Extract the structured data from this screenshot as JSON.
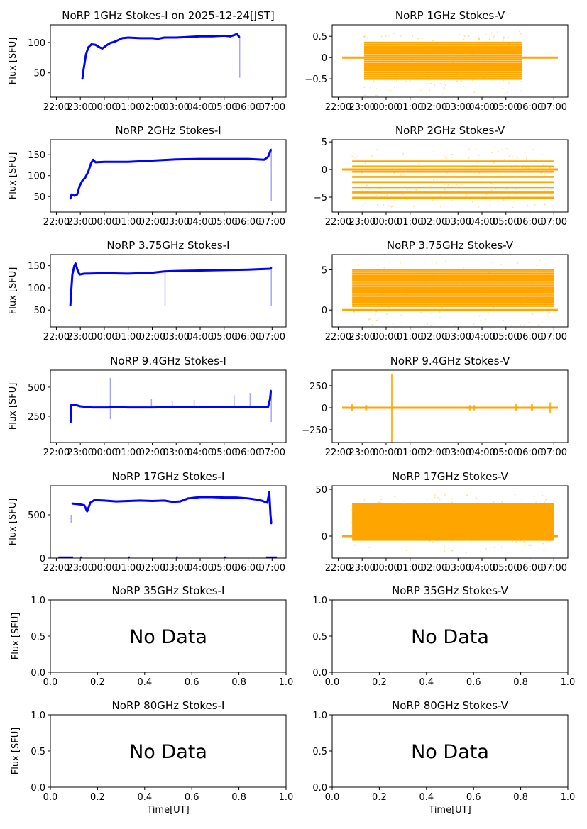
{
  "chart_data": [
    {
      "id": "1ghz-i",
      "type": "line",
      "title": "NoRP 1GHz Stokes-I on 2025-12-24[JST]",
      "ylabel": "Flux [SFU]",
      "xlabel": "",
      "color": "#0000ff",
      "xlim": [
        "21:45",
        "07:35"
      ],
      "xticks": [
        "22:00",
        "23:00",
        "00:00",
        "01:00",
        "02:00",
        "03:00",
        "04:00",
        "05:00",
        "06:00",
        "07:00"
      ],
      "ylim": [
        10,
        129
      ],
      "yticks": [
        50,
        100
      ],
      "points": [
        [
          "23:05",
          40
        ],
        [
          "23:08",
          55
        ],
        [
          "23:14",
          80
        ],
        [
          "23:20",
          92
        ],
        [
          "23:28",
          97
        ],
        [
          "23:38",
          96
        ],
        [
          "23:48",
          92
        ],
        [
          "23:55",
          90
        ],
        [
          "00:05",
          95
        ],
        [
          "00:15",
          99
        ],
        [
          "00:25",
          101
        ],
        [
          "00:35",
          104
        ],
        [
          "00:45",
          107
        ],
        [
          "01:00",
          108
        ],
        [
          "01:30",
          107
        ],
        [
          "02:00",
          107
        ],
        [
          "02:15",
          106
        ],
        [
          "02:30",
          108
        ],
        [
          "03:00",
          108
        ],
        [
          "03:30",
          109
        ],
        [
          "04:00",
          110
        ],
        [
          "04:30",
          110
        ],
        [
          "05:00",
          111
        ],
        [
          "05:15",
          110
        ],
        [
          "05:25",
          112
        ],
        [
          "05:32",
          114
        ],
        [
          "05:38",
          109
        ]
      ],
      "spikes": [
        [
          "05:39",
          42,
          109
        ]
      ]
    },
    {
      "id": "1ghz-v",
      "type": "scatter",
      "title": "NoRP 1GHz Stokes-V",
      "ylabel": "",
      "xlabel": "",
      "color": "#ffa500",
      "xlim": [
        "21:45",
        "07:35"
      ],
      "xticks": [
        "22:00",
        "23:00",
        "00:00",
        "01:00",
        "02:00",
        "03:00",
        "04:00",
        "05:00",
        "06:00",
        "07:00"
      ],
      "ylim": [
        -0.93,
        0.77
      ],
      "yticks": [
        -0.5,
        0.0,
        0.5
      ],
      "baseline": [
        "22:10",
        "07:10",
        0
      ],
      "band": {
        "from": "23:05",
        "to": "05:40",
        "levels_min": -0.5,
        "levels_max": 0.35,
        "step": 0.05
      },
      "sparse": {
        "min": -0.9,
        "max": 0.62
      }
    },
    {
      "id": "2ghz-i",
      "type": "line",
      "title": "NoRP 2GHz Stokes-I",
      "ylabel": "Flux [SFU]",
      "xlabel": "",
      "color": "#0000ff",
      "xlim": [
        "21:45",
        "07:35"
      ],
      "xticks": [
        "22:00",
        "23:00",
        "00:00",
        "01:00",
        "02:00",
        "03:00",
        "04:00",
        "05:00",
        "06:00",
        "07:00"
      ],
      "ylim": [
        13,
        186
      ],
      "yticks": [
        50,
        100,
        150
      ],
      "points": [
        [
          "22:35",
          45
        ],
        [
          "22:38",
          55
        ],
        [
          "22:45",
          52
        ],
        [
          "22:52",
          55
        ],
        [
          "22:58",
          75
        ],
        [
          "23:05",
          88
        ],
        [
          "23:12",
          95
        ],
        [
          "23:20",
          110
        ],
        [
          "23:27",
          130
        ],
        [
          "23:32",
          138
        ],
        [
          "23:38",
          132
        ],
        [
          "00:00",
          133
        ],
        [
          "01:00",
          133
        ],
        [
          "02:00",
          136
        ],
        [
          "03:00",
          139
        ],
        [
          "04:00",
          140
        ],
        [
          "05:00",
          140
        ],
        [
          "06:00",
          140
        ],
        [
          "06:40",
          138
        ],
        [
          "06:50",
          145
        ],
        [
          "06:57",
          162
        ]
      ],
      "spikes": [
        [
          "06:58",
          40,
          165
        ]
      ]
    },
    {
      "id": "2ghz-v",
      "type": "scatter",
      "title": "NoRP 2GHz Stokes-V",
      "ylabel": "",
      "xlabel": "",
      "color": "#ffa500",
      "xlim": [
        "21:45",
        "07:35"
      ],
      "xticks": [
        "22:00",
        "23:00",
        "00:00",
        "01:00",
        "02:00",
        "03:00",
        "04:00",
        "05:00",
        "06:00",
        "07:00"
      ],
      "ylim": [
        -7.7,
        5.4
      ],
      "yticks": [
        -5,
        0,
        5
      ],
      "baseline": [
        "22:10",
        "07:10",
        0
      ],
      "band": {
        "from": "22:35",
        "to": "07:00",
        "levels_min": -5.1,
        "levels_max": 2.4,
        "step": 0.94
      },
      "sparse": {
        "min": -7,
        "max": 4.2
      }
    },
    {
      "id": "3.75ghz-i",
      "type": "line",
      "title": "NoRP 3.75GHz Stokes-I",
      "ylabel": "Flux [SFU]",
      "xlabel": "",
      "color": "#0000ff",
      "xlim": [
        "21:45",
        "07:35"
      ],
      "xticks": [
        "22:00",
        "23:00",
        "00:00",
        "01:00",
        "02:00",
        "03:00",
        "04:00",
        "05:00",
        "06:00",
        "07:00"
      ],
      "ylim": [
        12,
        175
      ],
      "yticks": [
        50,
        100,
        150
      ],
      "points": [
        [
          "22:35",
          60
        ],
        [
          "22:37",
          90
        ],
        [
          "22:40",
          130
        ],
        [
          "22:45",
          150
        ],
        [
          "22:48",
          155
        ],
        [
          "22:53",
          140
        ],
        [
          "22:58",
          130
        ],
        [
          "23:10",
          132
        ],
        [
          "00:00",
          133
        ],
        [
          "01:00",
          132
        ],
        [
          "02:00",
          134
        ],
        [
          "02:30",
          137
        ],
        [
          "03:00",
          138
        ],
        [
          "04:00",
          139
        ],
        [
          "05:00",
          140
        ],
        [
          "06:00",
          141
        ],
        [
          "06:55",
          143
        ],
        [
          "06:58",
          145
        ]
      ],
      "spikes": [
        [
          "02:32",
          60,
          137
        ],
        [
          "06:58",
          60,
          145
        ]
      ]
    },
    {
      "id": "3.75ghz-v",
      "type": "scatter",
      "title": "NoRP 3.75GHz Stokes-V",
      "ylabel": "",
      "xlabel": "",
      "color": "#ffa500",
      "xlim": [
        "21:45",
        "07:35"
      ],
      "xticks": [
        "22:00",
        "23:00",
        "00:00",
        "01:00",
        "02:00",
        "03:00",
        "04:00",
        "05:00",
        "06:00",
        "07:00"
      ],
      "ylim": [
        -2.1,
        6.9
      ],
      "yticks": [
        0,
        5
      ],
      "baseline": [
        "22:10",
        "07:10",
        0
      ],
      "band": {
        "from": "22:35",
        "to": "07:00",
        "levels_min": 0.5,
        "levels_max": 5.0,
        "step": 0.25
      },
      "sparse": {
        "min": -2,
        "max": 6.2
      }
    },
    {
      "id": "9.4ghz-i",
      "type": "line",
      "title": "NoRP 9.4GHz Stokes-I",
      "ylabel": "Flux [SFU]",
      "xlabel": "",
      "color": "#0000ff",
      "xlim": [
        "21:45",
        "07:35"
      ],
      "xticks": [
        "22:00",
        "23:00",
        "00:00",
        "01:00",
        "02:00",
        "03:00",
        "04:00",
        "05:00",
        "06:00",
        "07:00"
      ],
      "ylim": [
        24,
        646
      ],
      "yticks": [
        250,
        500
      ],
      "points": [
        [
          "22:36",
          200
        ],
        [
          "22:37",
          345
        ],
        [
          "22:45",
          350
        ],
        [
          "23:00",
          335
        ],
        [
          "23:30",
          325
        ],
        [
          "00:10",
          325
        ],
        [
          "00:20",
          330
        ],
        [
          "01:00",
          325
        ],
        [
          "02:00",
          325
        ],
        [
          "03:00",
          328
        ],
        [
          "04:00",
          330
        ],
        [
          "05:00",
          330
        ],
        [
          "06:00",
          330
        ],
        [
          "06:50",
          330
        ],
        [
          "06:55",
          400
        ],
        [
          "06:57",
          470
        ]
      ],
      "spikes": [
        [
          "00:15",
          225,
          580
        ],
        [
          "01:58",
          320,
          400
        ],
        [
          "02:50",
          320,
          380
        ],
        [
          "03:45",
          320,
          390
        ],
        [
          "05:25",
          320,
          430
        ],
        [
          "06:05",
          320,
          450
        ],
        [
          "06:58",
          200,
          470
        ]
      ]
    },
    {
      "id": "9.4ghz-v",
      "type": "scatter",
      "title": "NoRP 9.4GHz Stokes-V",
      "ylabel": "",
      "xlabel": "",
      "color": "#ffa500",
      "xlim": [
        "21:45",
        "07:35"
      ],
      "xticks": [
        "22:00",
        "23:00",
        "00:00",
        "01:00",
        "02:00",
        "03:00",
        "04:00",
        "05:00",
        "06:00",
        "07:00"
      ],
      "ylim": [
        -395,
        427
      ],
      "yticks": [
        -250,
        0,
        250
      ],
      "baseline": [
        "22:10",
        "07:10",
        0
      ],
      "bursts": [
        [
          "00:15",
          -400,
          380
        ],
        [
          "22:35",
          -40,
          40
        ],
        [
          "23:10",
          -30,
          30
        ],
        [
          "03:30",
          -30,
          30
        ],
        [
          "03:40",
          -30,
          30
        ],
        [
          "05:25",
          -40,
          40
        ],
        [
          "06:05",
          -40,
          40
        ],
        [
          "06:50",
          -60,
          60
        ]
      ]
    },
    {
      "id": "17ghz-i",
      "type": "line",
      "title": "NoRP 17GHz Stokes-I",
      "ylabel": "Flux [SFU]",
      "xlabel": "",
      "color": "#0000ff",
      "xlim": [
        "21:45",
        "07:35"
      ],
      "xticks": [
        "22:00",
        "23:00",
        "00:00",
        "01:00",
        "02:00",
        "03:00",
        "04:00",
        "05:00",
        "06:00",
        "07:00"
      ],
      "ylim": [
        0,
        836
      ],
      "yticks": [
        0,
        500
      ],
      "points": [
        [
          "22:40",
          630
        ],
        [
          "23:00",
          620
        ],
        [
          "23:10",
          610
        ],
        [
          "23:17",
          540
        ],
        [
          "23:25",
          640
        ],
        [
          "23:35",
          670
        ],
        [
          "00:00",
          665
        ],
        [
          "00:30",
          655
        ],
        [
          "01:00",
          660
        ],
        [
          "01:30",
          665
        ],
        [
          "02:00",
          660
        ],
        [
          "02:30",
          665
        ],
        [
          "02:50",
          650
        ],
        [
          "03:10",
          655
        ],
        [
          "03:30",
          690
        ],
        [
          "04:00",
          705
        ],
        [
          "04:30",
          705
        ],
        [
          "05:00",
          700
        ],
        [
          "05:30",
          700
        ],
        [
          "06:00",
          690
        ],
        [
          "06:30",
          670
        ],
        [
          "06:48",
          640
        ],
        [
          "06:53",
          760
        ],
        [
          "06:56",
          500
        ],
        [
          "06:58",
          400
        ]
      ],
      "spikes": [
        [
          "22:37",
          410,
          500
        ]
      ],
      "zero_points": [
        [
          "22:05",
          "22:40"
        ],
        [
          "23:00",
          "23:02"
        ],
        [
          "01:00",
          "01:02"
        ],
        [
          "03:00",
          "03:02"
        ],
        [
          "05:00",
          "05:02"
        ],
        [
          "06:45",
          "07:10"
        ]
      ]
    },
    {
      "id": "17ghz-v",
      "type": "scatter",
      "title": "NoRP 17GHz Stokes-V",
      "ylabel": "",
      "xlabel": "",
      "color": "#ffa500",
      "xlim": [
        "21:45",
        "07:35"
      ],
      "xticks": [
        "22:00",
        "23:00",
        "00:00",
        "01:00",
        "02:00",
        "03:00",
        "04:00",
        "05:00",
        "06:00",
        "07:00"
      ],
      "ylim": [
        -23.5,
        53.8
      ],
      "yticks": [
        0,
        50
      ],
      "baseline": [
        "22:10",
        "07:10",
        0
      ],
      "filled": {
        "from": "22:35",
        "to": "07:00",
        "min": -5,
        "max": 35
      },
      "sparse": {
        "min": -18,
        "max": 45
      }
    },
    {
      "id": "35ghz-i",
      "type": "empty",
      "title": "NoRP 35GHz Stokes-I",
      "ylabel": "Flux [SFU]",
      "xlabel": "",
      "message": "No Data",
      "xlim": [
        0,
        1
      ],
      "ylim": [
        0,
        1
      ],
      "xticks": [
        "0.0",
        "0.2",
        "0.4",
        "0.6",
        "0.8",
        "1.0"
      ],
      "yticks": [
        "0.0",
        "0.5",
        "1.0"
      ]
    },
    {
      "id": "35ghz-v",
      "type": "empty",
      "title": "NoRP 35GHz Stokes-V",
      "ylabel": "",
      "xlabel": "",
      "message": "No Data",
      "xlim": [
        0,
        1
      ],
      "ylim": [
        0,
        1
      ],
      "xticks": [
        "0.0",
        "0.2",
        "0.4",
        "0.6",
        "0.8",
        "1.0"
      ],
      "yticks": [
        "0.0",
        "0.5",
        "1.0"
      ]
    },
    {
      "id": "80ghz-i",
      "type": "empty",
      "title": "NoRP 80GHz Stokes-I",
      "ylabel": "Flux [SFU]",
      "xlabel": "Time[UT]",
      "message": "No Data",
      "xlim": [
        0,
        1
      ],
      "ylim": [
        0,
        1
      ],
      "xticks": [
        "0.0",
        "0.2",
        "0.4",
        "0.6",
        "0.8",
        "1.0"
      ],
      "yticks": [
        "0.0",
        "0.5",
        "1.0"
      ]
    },
    {
      "id": "80ghz-v",
      "type": "empty",
      "title": "NoRP 80GHz Stokes-V",
      "ylabel": "",
      "xlabel": "Time[UT]",
      "message": "No Data",
      "xlim": [
        0,
        1
      ],
      "ylim": [
        0,
        1
      ],
      "xticks": [
        "0.0",
        "0.2",
        "0.4",
        "0.6",
        "0.8",
        "1.0"
      ],
      "yticks": [
        "0.0",
        "0.5",
        "1.0"
      ]
    }
  ]
}
